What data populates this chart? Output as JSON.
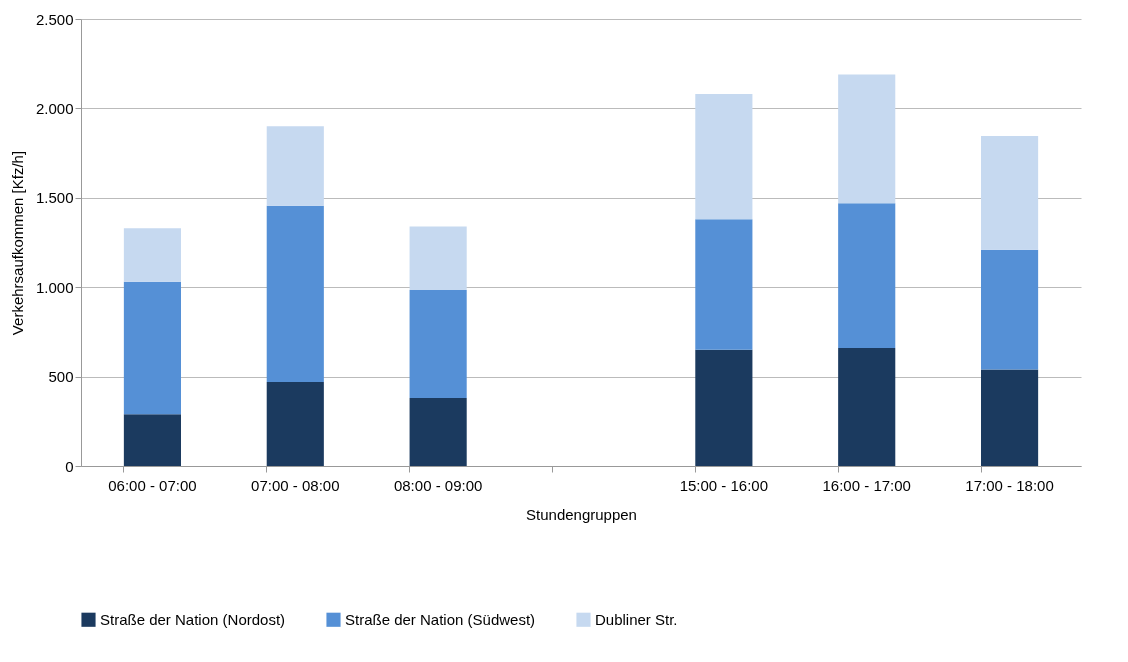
{
  "chart_data": {
    "type": "bar",
    "stacked": true,
    "xlabel": "Stundengruppen",
    "ylabel": "Verkehrsaufkommen [Kfz/h]",
    "categories": [
      "06:00 - 07:00",
      "07:00 - 08:00",
      "08:00 - 09:00",
      null,
      "15:00 - 16:00",
      "16:00 - 17:00",
      "17:00 - 18:00"
    ],
    "series": [
      {
        "name": "Straße der Nation (Nordost)",
        "color": "#1b3a5f",
        "values": [
          290,
          470,
          380,
          null,
          650,
          660,
          540
        ]
      },
      {
        "name": "Straße der Nation (Südwest)",
        "color": "#5590d6",
        "values": [
          740,
          985,
          605,
          null,
          730,
          810,
          670
        ]
      },
      {
        "name": "Dubliner Str.",
        "color": "#c6d9f0",
        "values": [
          300,
          445,
          355,
          null,
          700,
          720,
          635
        ]
      }
    ],
    "ylim": [
      0,
      2500
    ],
    "yticks": [
      {
        "value": 0,
        "label": "0"
      },
      {
        "value": 500,
        "label": "500"
      },
      {
        "value": 1000,
        "label": "1.000"
      },
      {
        "value": 1500,
        "label": "1.500"
      },
      {
        "value": 2000,
        "label": "2.000"
      },
      {
        "value": 2500,
        "label": "2.500"
      }
    ],
    "grid": "y",
    "legend": "bottom"
  }
}
